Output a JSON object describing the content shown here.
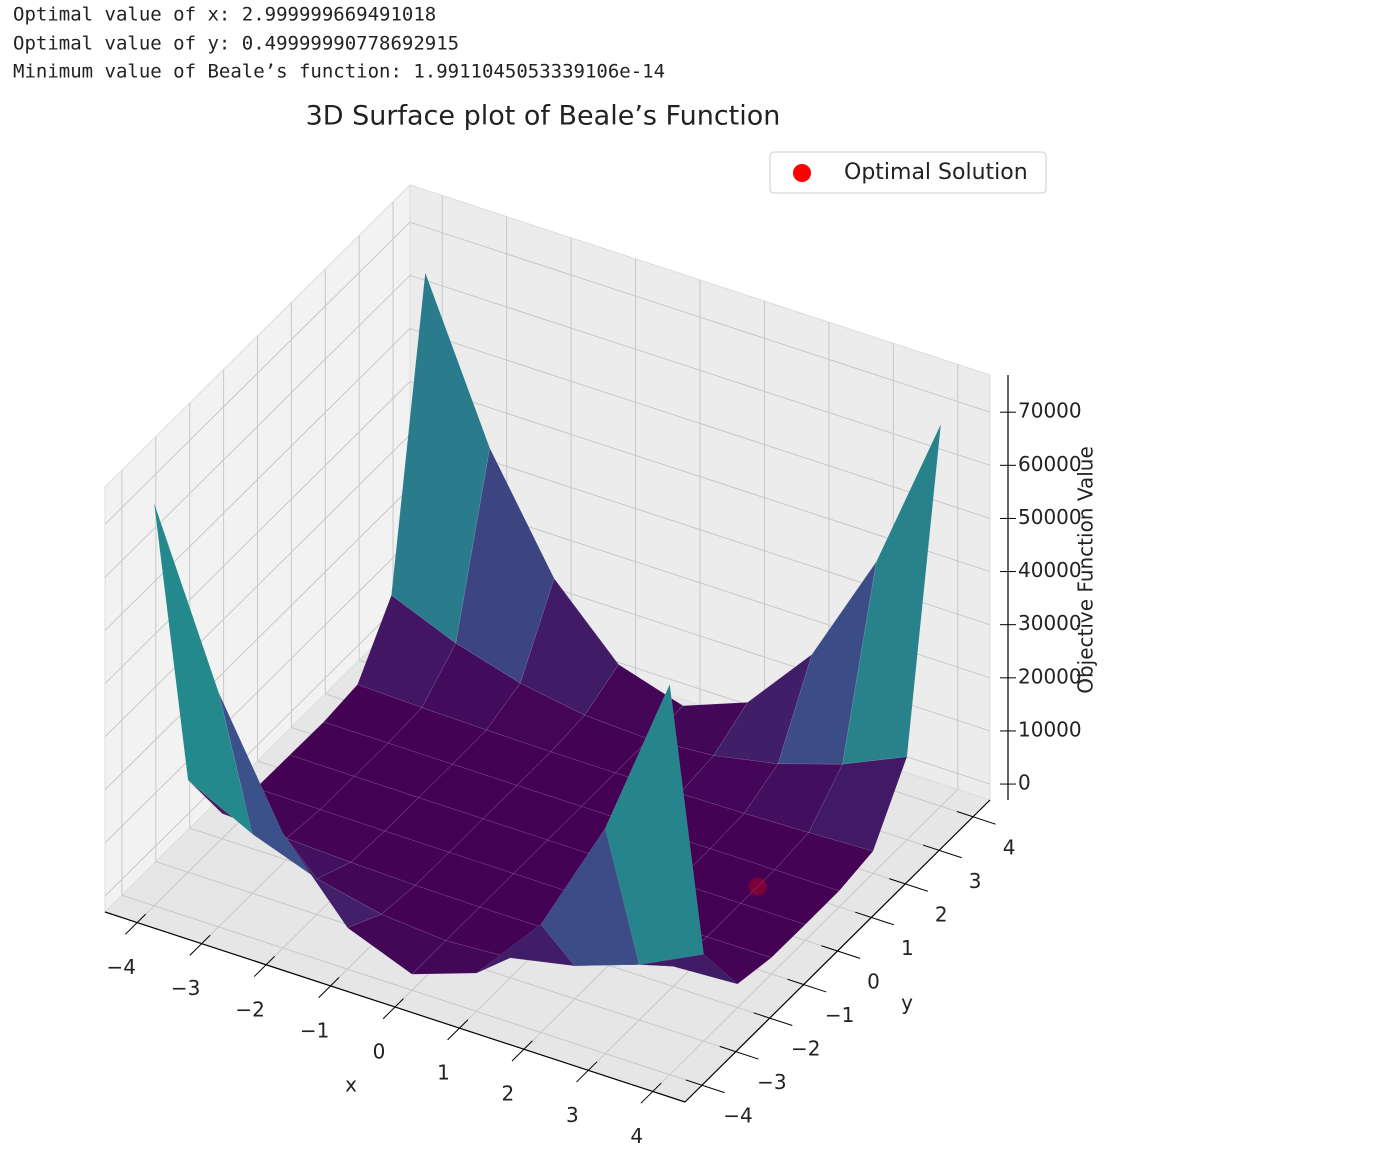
{
  "console": [
    "Optimal value of x: 2.999999669491018",
    "Optimal value of y: 0.49999990778692915",
    "Minimum value of Beale’s function: 1.9911045053339106e-14"
  ],
  "chart_data": {
    "type": "surface",
    "title": "3D Surface plot of Beale’s Function",
    "xlabel": "x",
    "ylabel": "y",
    "zlabel": "Objective Function Value",
    "x": [
      -4,
      -3,
      -2,
      -1,
      0,
      1,
      2,
      3,
      4
    ],
    "y": [
      -4,
      -3,
      -2,
      -1,
      0,
      1,
      2,
      3,
      4
    ],
    "z": [
      [
        72769,
        41155,
        18492,
        4778,
        14,
        4200,
        17337,
        39423,
        70459
      ],
      [
        14330,
        8159,
        3716,
        1001,
        14,
        755,
        3224,
        7421,
        13346
      ],
      [
        1769,
        1033,
        496,
        156,
        14,
        70,
        325,
        777,
        1427
      ],
      [
        208,
        136,
        79,
        39,
        14,
        6,
        13,
        37,
        76
      ],
      [
        113,
        79,
        52,
        30,
        14,
        4,
        1,
        3,
        11
      ],
      [
        14,
        14,
        14,
        14,
        14,
        14,
        14,
        14,
        14
      ],
      [
        745,
        385,
        144,
        20,
        14,
        126,
        357,
        705,
        1171
      ],
      [
        11204,
        6175,
        2633,
        580,
        14,
        937,
        3347,
        7246,
        12632
      ],
      [
        65633,
        36619,
        16012,
        3810,
        14,
        4624,
        17641,
        39063,
        68891
      ]
    ],
    "colormap": "viridis",
    "xlim": [
      -4.5,
      4.5
    ],
    "ylim": [
      -4.5,
      4.5
    ],
    "zlim": [
      -3000,
      77000
    ],
    "xticks": [
      {
        "value": -4,
        "label": "−4"
      },
      {
        "value": -3,
        "label": "−3"
      },
      {
        "value": -2,
        "label": "−2"
      },
      {
        "value": -1,
        "label": "−1"
      },
      0,
      1,
      2,
      3,
      4
    ],
    "yticks": [
      {
        "value": -4,
        "label": "−4"
      },
      {
        "value": -3,
        "label": "−3"
      },
      {
        "value": -2,
        "label": "−2"
      },
      {
        "value": -1,
        "label": "−1"
      },
      0,
      1,
      2,
      3,
      4
    ],
    "zticks": [
      0,
      10000,
      20000,
      30000,
      40000,
      50000,
      60000,
      70000
    ],
    "grid": true,
    "legend": "upper right",
    "points": [
      {
        "name": "Optimal Solution",
        "color": "#ff0000",
        "x": 3,
        "y": 0.5,
        "z": 0
      }
    ]
  }
}
